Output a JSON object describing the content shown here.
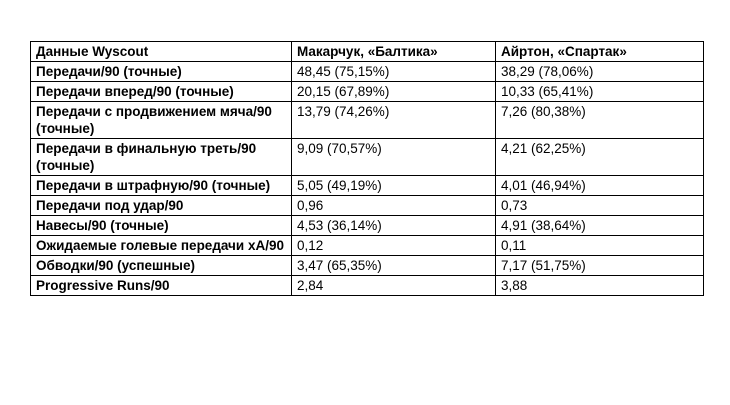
{
  "table": {
    "headers": [
      "Данные Wyscout",
      "Макарчук, «Балтика»",
      "Айртон, «Спартак»"
    ],
    "rows": [
      [
        "Передачи/90 (точные)",
        "48,45 (75,15%)",
        "38,29 (78,06%)"
      ],
      [
        "Передачи вперед/90 (точные)",
        "20,15 (67,89%)",
        "10,33 (65,41%)"
      ],
      [
        "Передачи с продвижением мяча/90 (точные)",
        "13,79 (74,26%)",
        "7,26 (80,38%)"
      ],
      [
        "Передачи в финальную треть/90 (точные)",
        "9,09 (70,57%)",
        "4,21 (62,25%)"
      ],
      [
        "Передачи в штрафную/90 (точные)",
        "5,05 (49,19%)",
        "4,01 (46,94%)"
      ],
      [
        "Передачи под удар/90",
        "0,96",
        "0,73"
      ],
      [
        "Навесы/90 (точные)",
        "4,53 (36,14%)",
        "4,91 (38,64%)"
      ],
      [
        "Ожидаемые голевые передачи xA/90",
        "0,12",
        "0,11"
      ],
      [
        "Обводки/90 (успешные)",
        "3,47 (65,35%)",
        "7,17 (51,75%)"
      ],
      [
        "Progressive Runs/90",
        "2,84",
        "3,88"
      ]
    ]
  }
}
